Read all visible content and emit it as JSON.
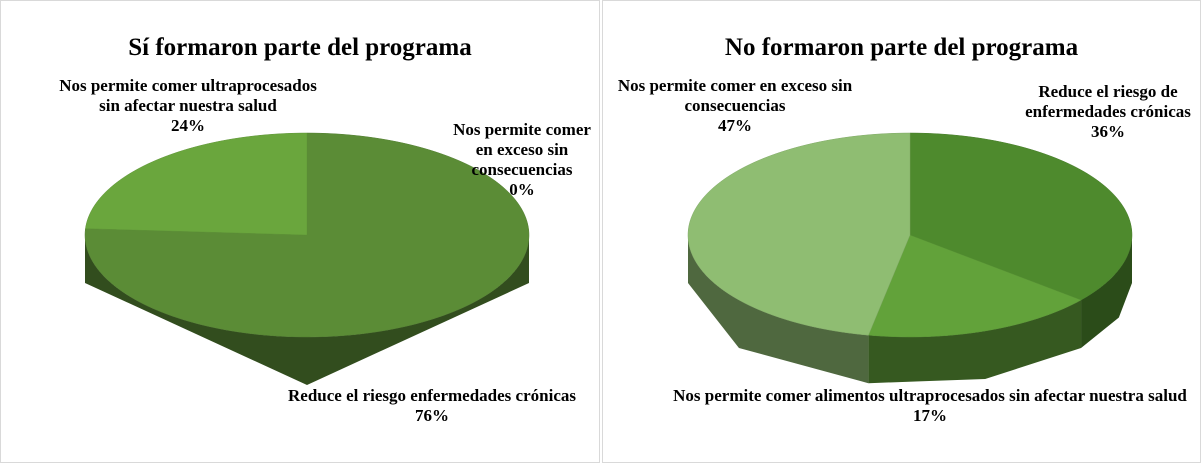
{
  "chart_data": [
    {
      "type": "pie",
      "title": "Sí formaron parte del programa",
      "categories": [
        "Reduce el riesgo enfermedades crónicas",
        "Nos permite comer en exceso sin consecuencias",
        "Nos permite comer ultraprocesados sin afectar nuestra salud"
      ],
      "values": [
        76,
        0,
        24
      ],
      "value_labels": [
        "76%",
        "0%",
        "24%"
      ],
      "colors": [
        "#5b8c36",
        "#4f7f2e",
        "#6aa63d"
      ]
    },
    {
      "type": "pie",
      "title": "No formaron parte del programa",
      "categories": [
        "Reduce el riesgo de enfermedades crónicas",
        "Nos permite comer alimentos ultraprocesados sin afectar nuestra salud",
        "Nos permite comer en exceso sin consecuencias"
      ],
      "values": [
        36,
        17,
        47
      ],
      "value_labels": [
        "36%",
        "17%",
        "47%"
      ],
      "colors": [
        "#4e8a2d",
        "#62a23a",
        "#8fbd72"
      ]
    }
  ]
}
